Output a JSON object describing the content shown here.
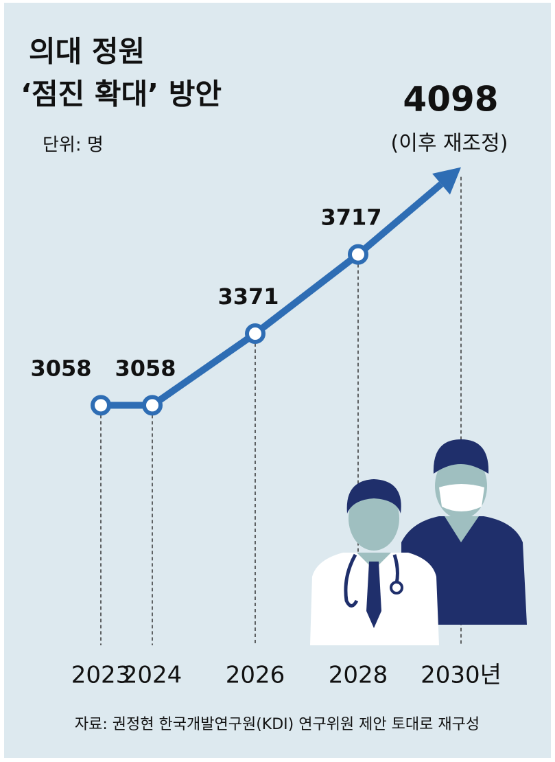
{
  "chart_data": {
    "type": "line",
    "title": [
      "의대 정원",
      "‘점진 확대’ 방안"
    ],
    "subtitle": "단위: 명",
    "x": [
      2023,
      2024,
      2026,
      2028,
      2030
    ],
    "values": [
      3058,
      3058,
      3371,
      3717,
      4098
    ],
    "color": "#2e6db4",
    "xlim": [
      2022,
      2031
    ],
    "xticks": [
      2023,
      2024,
      2026,
      2028,
      {
        "value": 2030,
        "label": "2030년"
      }
    ],
    "ylim": [
      2000,
      4400
    ],
    "annotations": [
      "(이후 재조정)"
    ],
    "source": "자료: 권정현 한국개발연구원(KDI) 연구위원 제안 토대로 재구성"
  }
}
